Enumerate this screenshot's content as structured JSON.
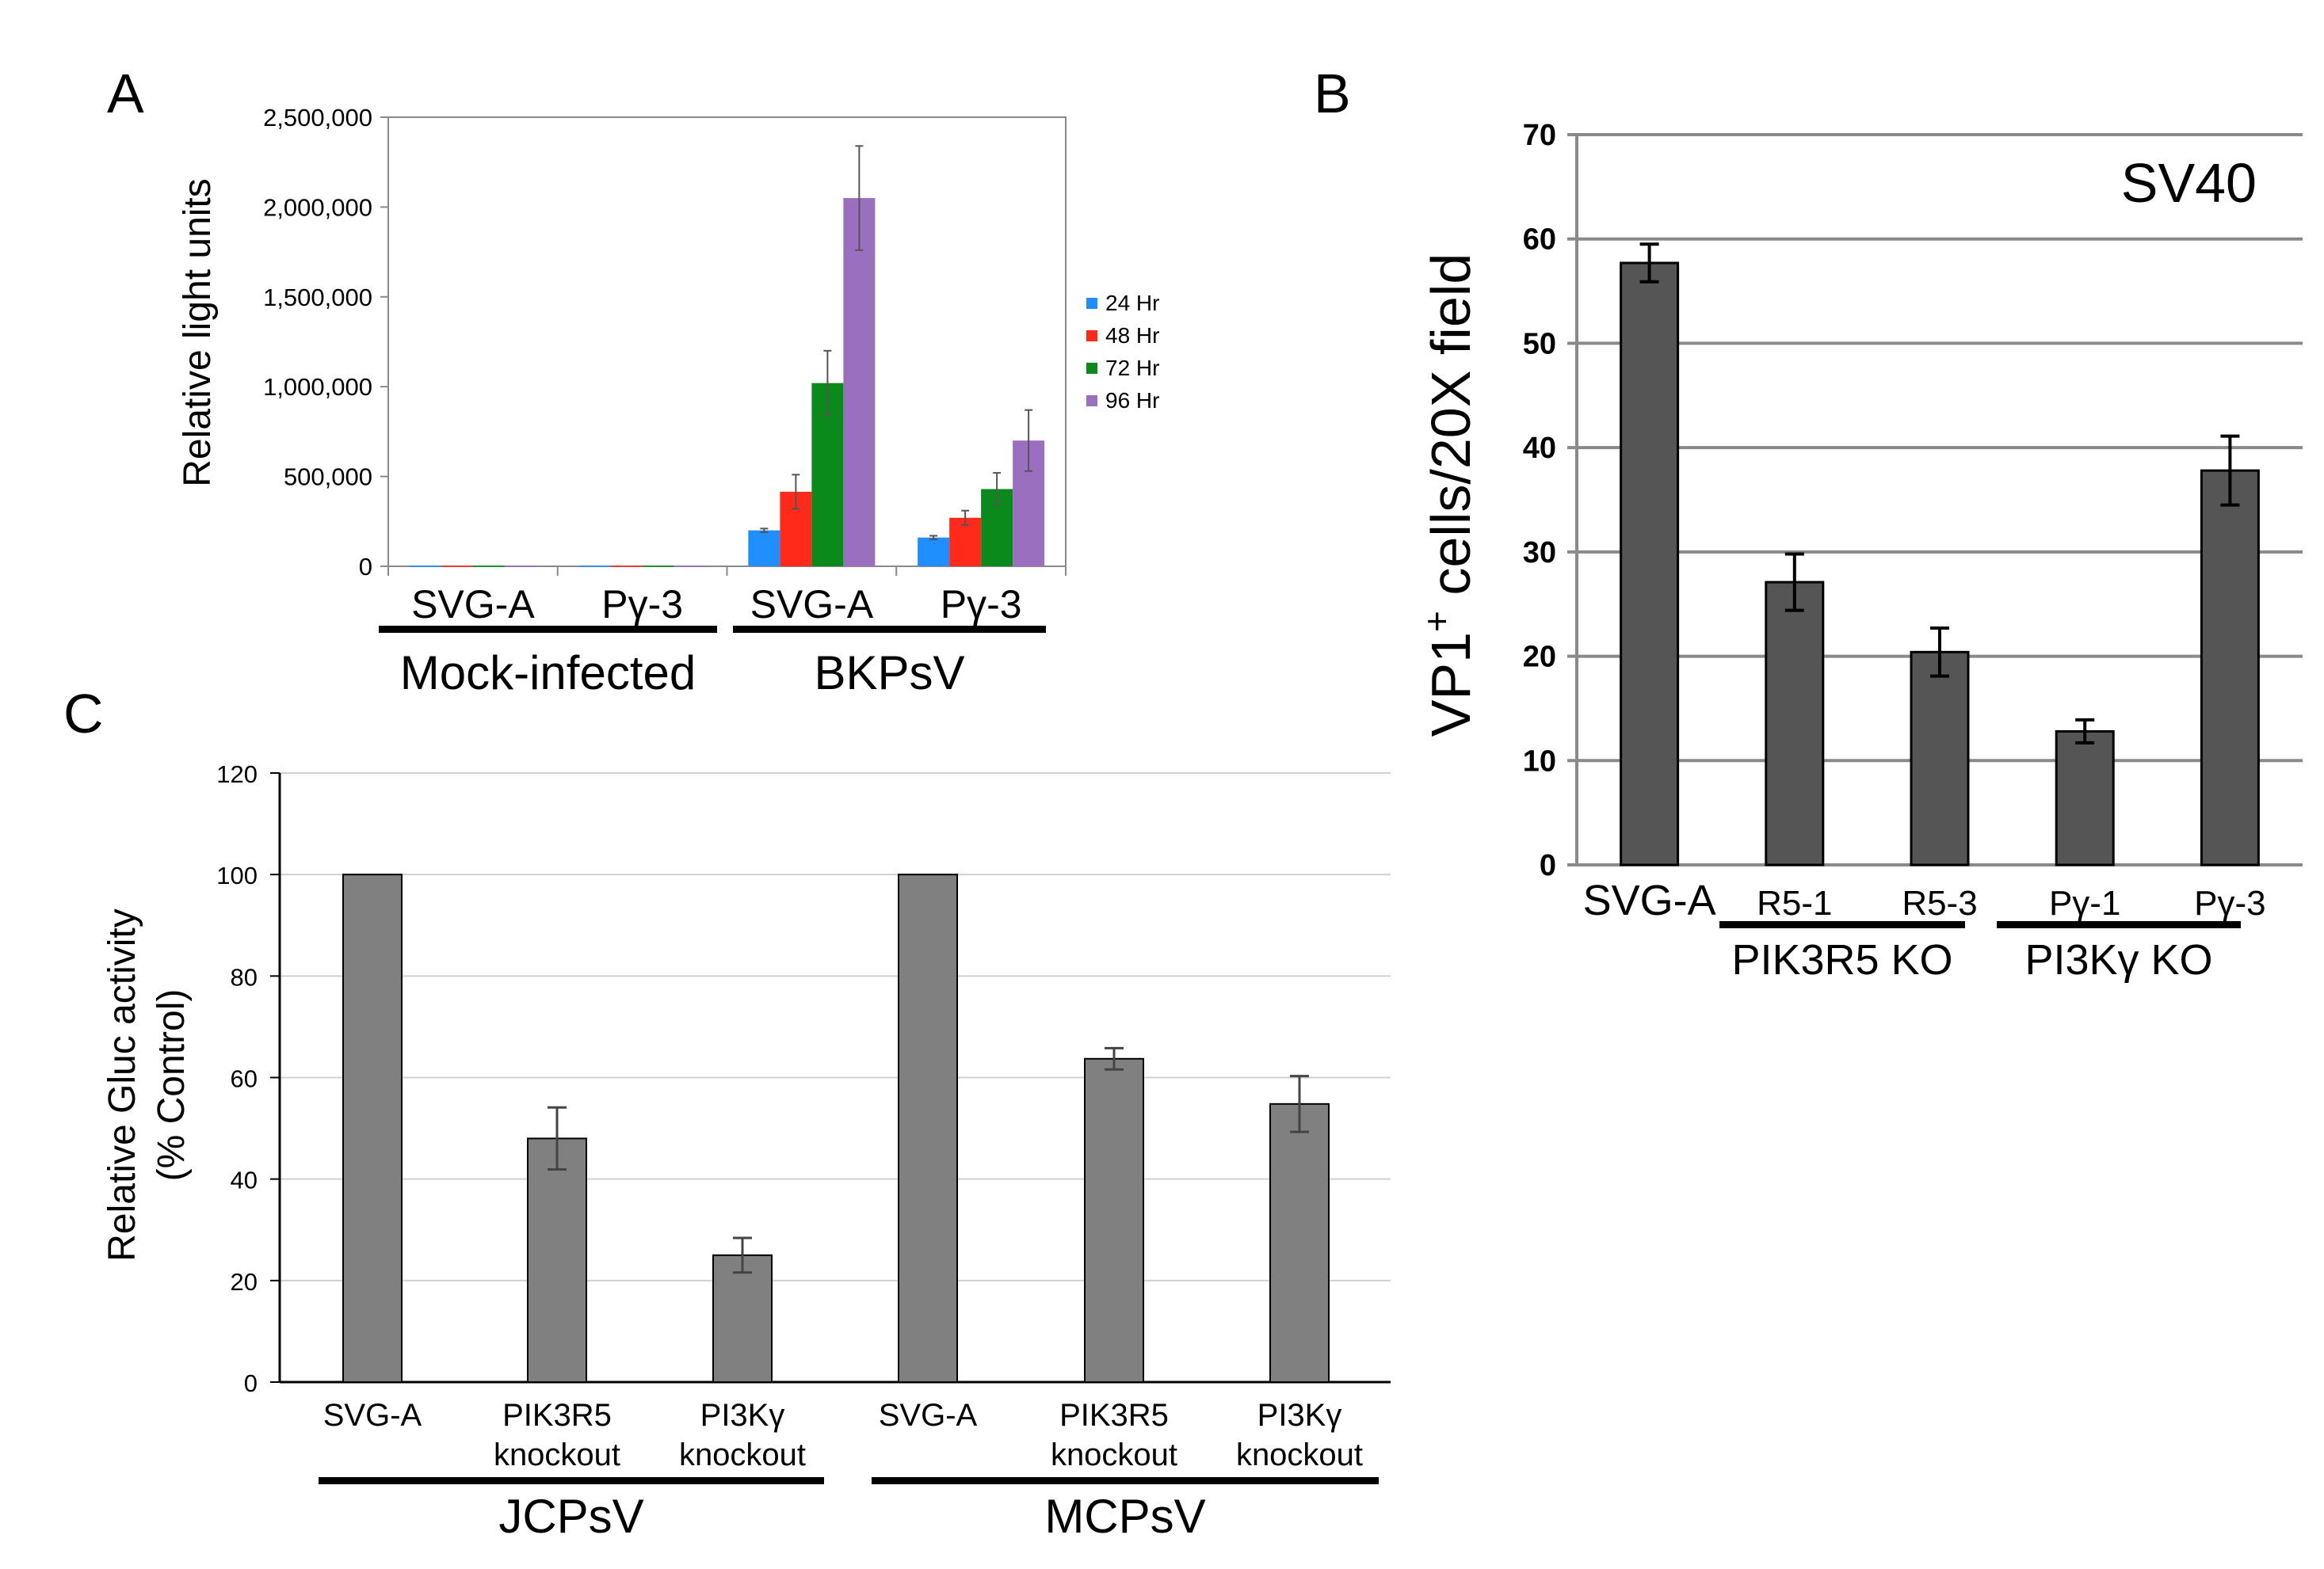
{
  "panels": {
    "a": "A",
    "b": "B",
    "c": "C"
  },
  "chart_data": [
    {
      "id": "A",
      "type": "bar",
      "ylabel": "Relative light units",
      "ylim": [
        0,
        2500000
      ],
      "yticks": [
        0,
        500000,
        1000000,
        1500000,
        2000000,
        2500000
      ],
      "ytick_labels": [
        "0",
        "500,000",
        "1,000,000",
        "1,500,000",
        "2,000,000",
        "2,500,000"
      ],
      "categories": [
        "SVG-A",
        "Pγ-3",
        "SVG-A",
        "Pγ-3"
      ],
      "groups": [
        {
          "label": "Mock-infected",
          "categories": [
            "SVG-A",
            "Pγ-3"
          ]
        },
        {
          "label": "BKPsV",
          "categories": [
            "SVG-A",
            "Pγ-3"
          ]
        }
      ],
      "legend_position": "right",
      "series": [
        {
          "name": "24 Hr",
          "color": "#1f8fff",
          "values": [
            3000,
            3000,
            200000,
            160000
          ],
          "errors": [
            0,
            0,
            10000,
            10000
          ]
        },
        {
          "name": "48 Hr",
          "color": "#ff2a1a",
          "values": [
            3000,
            3000,
            415000,
            270000
          ],
          "errors": [
            0,
            0,
            95000,
            40000
          ]
        },
        {
          "name": "72 Hr",
          "color": "#0a8a1a",
          "values": [
            3000,
            3000,
            1020000,
            430000
          ],
          "errors": [
            0,
            0,
            180000,
            90000
          ]
        },
        {
          "name": "96 Hr",
          "color": "#9b6fc0",
          "values": [
            3000,
            3000,
            2050000,
            700000
          ],
          "errors": [
            0,
            0,
            290000,
            170000
          ]
        }
      ],
      "grid": false
    },
    {
      "id": "B",
      "type": "bar",
      "title": "SV40",
      "ylabel_main": "VP1",
      "ylabel_sup": "+",
      "ylabel_rest": " cells/20X field",
      "ylim": [
        0,
        70
      ],
      "yticks": [
        0,
        10,
        20,
        30,
        40,
        50,
        60,
        70
      ],
      "ytick_labels": [
        "0",
        "10",
        "20",
        "30",
        "40",
        "50",
        "60",
        "70"
      ],
      "categories": [
        "SVG-A",
        "R5-1",
        "R5-3",
        "Pγ-1",
        "Pγ-3"
      ],
      "groups": [
        {
          "label": "PIK3R5 KO",
          "categories": [
            "R5-1",
            "R5-3"
          ]
        },
        {
          "label": "PI3Kγ KO",
          "categories": [
            "Pγ-1",
            "Pγ-3"
          ]
        }
      ],
      "series": [
        {
          "name": "SV40",
          "color": "#555555",
          "values": [
            57.7,
            27.1,
            20.4,
            12.8,
            37.8
          ],
          "errors": [
            1.8,
            2.7,
            2.3,
            1.1,
            3.3
          ]
        }
      ],
      "grid": true
    },
    {
      "id": "C",
      "type": "bar",
      "ylabel_line1": "Relative Gluc activity",
      "ylabel_line2": "(% Control)",
      "ylim": [
        0,
        120
      ],
      "yticks": [
        0,
        20,
        40,
        60,
        80,
        100,
        120
      ],
      "ytick_labels": [
        "0",
        "20",
        "40",
        "60",
        "80",
        "100",
        "120"
      ],
      "categories": [
        [
          "SVG-A"
        ],
        [
          "PIK3R5",
          "knockout"
        ],
        [
          "PI3Kγ",
          "knockout"
        ],
        [
          "SVG-A"
        ],
        [
          "PIK3R5",
          "knockout"
        ],
        [
          "PI3Kγ",
          "knockout"
        ]
      ],
      "groups": [
        {
          "label": "JCPsV"
        },
        {
          "label": "MCPsV"
        }
      ],
      "series": [
        {
          "name": "Gluc",
          "color": "#808080",
          "values": [
            100,
            48,
            25,
            100,
            63.7,
            54.8
          ],
          "errors": [
            0,
            6.1,
            3.4,
            0,
            2.1,
            5.5
          ]
        }
      ],
      "grid": true
    }
  ]
}
